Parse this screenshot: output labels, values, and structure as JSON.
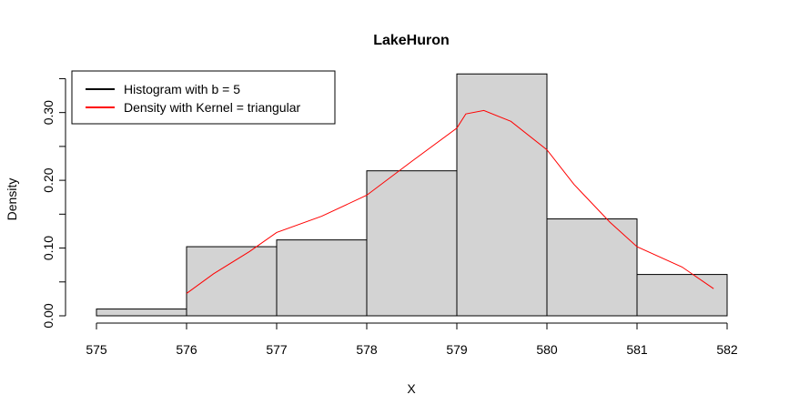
{
  "chart_data": {
    "type": "histogram",
    "title": "LakeHuron",
    "xlabel": "X",
    "ylabel": "Density",
    "xlim": [
      575,
      582
    ],
    "ylim": [
      0,
      0.36
    ],
    "x_ticks": [
      "575",
      "576",
      "577",
      "578",
      "579",
      "580",
      "581",
      "582"
    ],
    "y_ticks": [
      "0.00",
      "0.10",
      "0.20",
      "0.30"
    ],
    "bin_edges": [
      575,
      576,
      577,
      578,
      579,
      580,
      581,
      582
    ],
    "series": [
      {
        "name": "Histogram with b = 5",
        "type": "bar",
        "values": [
          0.01,
          0.102,
          0.112,
          0.214,
          0.357,
          0.143,
          0.061
        ]
      },
      {
        "name": "Density with Kernel = triangular",
        "type": "line",
        "x": [
          576.0,
          576.3,
          576.7,
          577.0,
          577.5,
          578.0,
          578.5,
          579.0,
          579.1,
          579.3,
          579.6,
          580.0,
          580.3,
          580.7,
          581.0,
          581.5,
          581.85
        ],
        "values": [
          0.033,
          0.062,
          0.095,
          0.123,
          0.147,
          0.178,
          0.228,
          0.277,
          0.298,
          0.303,
          0.287,
          0.245,
          0.194,
          0.138,
          0.102,
          0.072,
          0.04
        ]
      }
    ],
    "colors": {
      "bars_fill": "#d3d3d3",
      "bars_stroke": "#000000",
      "density_line": "#ff0000"
    },
    "legend": {
      "position": "top-left"
    },
    "grid": false
  }
}
